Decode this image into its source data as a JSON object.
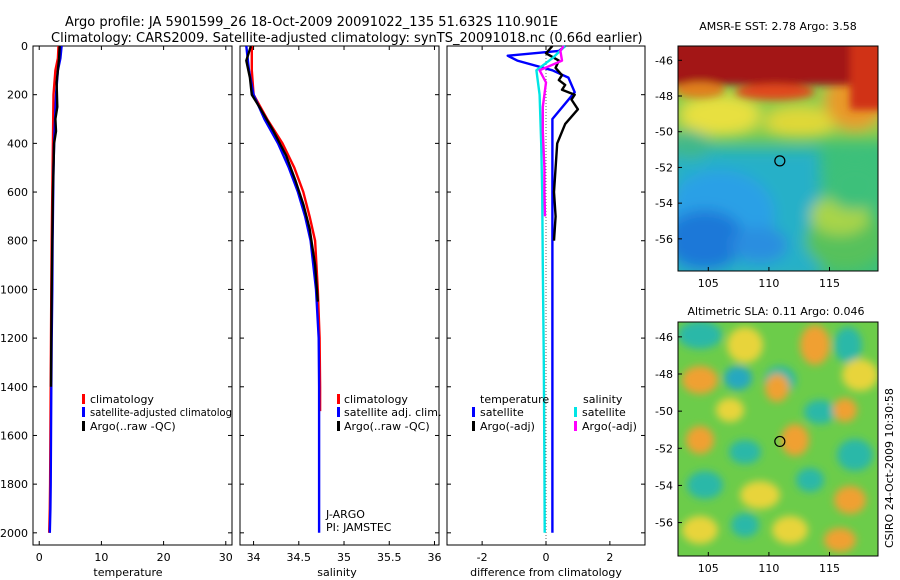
{
  "header": {
    "line1": "Argo profile: JA 5901599_26 18-Oct-2009 20091022_135 51.632S 110.901E",
    "line2": "Climatology: CARS2009. Satellite-adjusted climatology: synTS_20091018.nc (0.66d earlier)"
  },
  "side_label": "CSIRO 24-Oct-2009 10:30:58",
  "colors": {
    "climatology": "#ff0000",
    "satellite": "#0000ff",
    "argo": "#000000",
    "satellite_salinity": "#00e5e5",
    "argo_salinity": "#ff00ff",
    "sea_warm": "#b01010",
    "sea_cold": "#1f5fd0"
  },
  "chart_data": [
    {
      "id": "temperature",
      "type": "line",
      "xlabel": "temperature",
      "ylabel": "",
      "xlim": [
        -1,
        31
      ],
      "ylim": [
        2050,
        0
      ],
      "y_reversed": true,
      "xticks": [
        0,
        10,
        20,
        30
      ],
      "yticks": [
        0,
        200,
        400,
        600,
        800,
        1000,
        1200,
        1400,
        1600,
        1800,
        2000
      ],
      "legend": [
        "climatology",
        "satellite-adjusted climatolog",
        "Argo(..raw -QC)"
      ],
      "series": [
        {
          "name": "climatology",
          "color_key": "climatology",
          "x": [
            3.1,
            3.0,
            2.6,
            2.3,
            2.25,
            2.2,
            2.15,
            2.1,
            2.05,
            2.0,
            1.95,
            1.9,
            1.85,
            1.8,
            1.75,
            1.7,
            1.6
          ],
          "y": [
            0,
            50,
            100,
            200,
            300,
            400,
            500,
            600,
            700,
            800,
            1000,
            1200,
            1400,
            1600,
            1800,
            1900,
            2000
          ]
        },
        {
          "name": "satellite-adjusted climatolog",
          "color_key": "satellite",
          "x": [
            3.6,
            3.4,
            3.0,
            2.7,
            2.55,
            2.4,
            2.3,
            2.25,
            2.2,
            2.15,
            2.1,
            2.0,
            1.95,
            1.9,
            1.85,
            1.8,
            1.7
          ],
          "y": [
            0,
            50,
            100,
            200,
            300,
            400,
            500,
            600,
            700,
            800,
            1000,
            1200,
            1400,
            1600,
            1800,
            1900,
            2000
          ]
        },
        {
          "name": "Argo(..raw -QC)",
          "color_key": "argo",
          "x": [
            3.3,
            3.2,
            2.8,
            2.9,
            2.6,
            2.7,
            2.4,
            2.3,
            2.2,
            2.1,
            2.0,
            1.95,
            1.9
          ],
          "y": [
            0,
            50,
            150,
            250,
            300,
            350,
            400,
            500,
            600,
            800,
            1000,
            1200,
            1400
          ]
        }
      ]
    },
    {
      "id": "salinity",
      "type": "line",
      "xlabel": "salinity",
      "ylabel": "",
      "xlim": [
        33.85,
        36.05
      ],
      "ylim": [
        2050,
        0
      ],
      "y_reversed": true,
      "xticks": [
        34,
        34.5,
        35,
        35.5,
        36
      ],
      "legend": [
        "climatology",
        "satellite adj. clim.",
        "Argo(..raw -QC)"
      ],
      "annotations": [
        "J-ARGO",
        "PI: JAMSTEC"
      ],
      "series": [
        {
          "name": "climatology",
          "color_key": "climatology",
          "x": [
            33.98,
            33.98,
            34.0,
            34.15,
            34.32,
            34.45,
            34.55,
            34.62,
            34.68,
            34.71,
            34.73,
            34.735,
            34.735
          ],
          "y": [
            0,
            100,
            200,
            300,
            400,
            500,
            600,
            700,
            800,
            1000,
            1200,
            1400,
            1500
          ]
        },
        {
          "name": "satellite adj. clim.",
          "color_key": "satellite",
          "x": [
            33.92,
            33.95,
            34.0,
            34.12,
            34.27,
            34.39,
            34.49,
            34.57,
            34.63,
            34.69,
            34.72,
            34.725,
            34.725,
            34.725
          ],
          "y": [
            0,
            100,
            200,
            300,
            400,
            500,
            600,
            700,
            800,
            1000,
            1200,
            1400,
            1600,
            2000
          ]
        },
        {
          "name": "Argo(..raw -QC)",
          "color_key": "argo",
          "x": [
            33.97,
            33.92,
            33.96,
            33.98,
            34.08,
            34.22,
            34.36,
            34.46,
            34.55,
            34.62,
            34.68,
            34.71
          ],
          "y": [
            0,
            60,
            130,
            200,
            260,
            350,
            450,
            550,
            650,
            750,
            900,
            1050
          ]
        }
      ]
    },
    {
      "id": "difference",
      "type": "line",
      "xlabel": "difference from climatology",
      "ylabel": "",
      "xlim": [
        -3.1,
        3.1
      ],
      "ylim": [
        2050,
        0
      ],
      "y_reversed": true,
      "xticks": [
        -2,
        0,
        2
      ],
      "legend_titles": [
        "temperature",
        "salinity"
      ],
      "legend": [
        "satellite",
        "Argo(-adj)",
        "satellite",
        "Argo(-adj)"
      ],
      "series": [
        {
          "name": "temperature satellite",
          "color_key": "satellite",
          "x": [
            0.6,
            0.4,
            -1.2,
            -0.9,
            0.2,
            0.7,
            0.9,
            0.2,
            0.2,
            0.2,
            0.2,
            0.2,
            0.2,
            0.2,
            0.2
          ],
          "y": [
            0,
            20,
            40,
            60,
            100,
            130,
            190,
            300,
            400,
            600,
            800,
            1000,
            1400,
            1800,
            2000
          ]
        },
        {
          "name": "temperature Argo(-adj)",
          "color_key": "argo",
          "x": [
            0.2,
            0.0,
            0.4,
            0.3,
            0.5,
            0.4,
            0.6,
            0.5,
            0.9,
            0.8,
            1.0,
            0.6,
            0.35,
            0.3,
            0.25,
            0.3,
            0.25
          ],
          "y": [
            0,
            30,
            60,
            90,
            120,
            140,
            160,
            180,
            200,
            220,
            260,
            320,
            400,
            500,
            600,
            700,
            800
          ]
        },
        {
          "name": "salinity satellite",
          "color_key": "satellite_salinity",
          "x": [
            0.6,
            0.2,
            -0.3,
            -0.2,
            -0.15,
            -0.12,
            -0.1,
            -0.07,
            -0.05,
            -0.04
          ],
          "y": [
            0,
            50,
            100,
            200,
            400,
            600,
            900,
            1300,
            1700,
            2000
          ]
        },
        {
          "name": "salinity Argo(-adj)",
          "color_key": "argo_salinity",
          "x": [
            0.55,
            0.45,
            0.5,
            -0.2,
            0.0,
            -0.1,
            -0.1,
            -0.05,
            -0.05,
            -0.03
          ],
          "y": [
            0,
            20,
            60,
            100,
            150,
            250,
            350,
            500,
            600,
            700
          ]
        }
      ]
    }
  ],
  "map_sst": {
    "title": "AMSR-E SST: 2.78 Argo: 3.58",
    "xticks": [
      105,
      110,
      115
    ],
    "yticks": [
      -46,
      -48,
      -50,
      -52,
      -54,
      -56
    ],
    "xlim": [
      102.5,
      119
    ],
    "ylim": [
      -57.8,
      -45.2
    ],
    "argo_lon": 110.901,
    "argo_lat": -51.632
  },
  "map_sla": {
    "title": "Altimetric SLA: 0.11 Argo: 0.046",
    "xticks": [
      105,
      110,
      115
    ],
    "yticks": [
      -46,
      -48,
      -50,
      -52,
      -54,
      -56
    ],
    "xlim": [
      102.5,
      119
    ],
    "ylim": [
      -57.8,
      -45.2
    ],
    "argo_lon": 110.901,
    "argo_lat": -51.632
  }
}
